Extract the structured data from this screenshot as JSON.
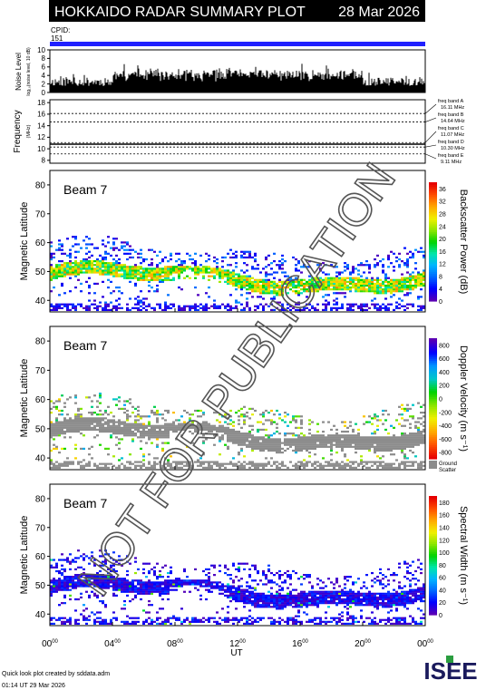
{
  "header": {
    "title": "HOKKAIDO RADAR SUMMARY PLOT",
    "date": "28 Mar 2026",
    "cpid_label": "CPID:",
    "cpid_value": "151"
  },
  "watermark": "NOT FOR PUBLICATION",
  "footer": {
    "created_by": "Quick look plot created by sddata.adm",
    "timestamp": "01:14 UT 29 Mar 2026",
    "logo": "ISEE"
  },
  "colors": {
    "title_bar": "#000000",
    "cpid_bar": "#2020ff",
    "ground_scatter": "#8c8c8c"
  },
  "chart_data": [
    {
      "type": "bar",
      "name": "noise",
      "ylabel": "Noise Level",
      "ylabel_sub": "log₁₀(noise level, 10 dB)",
      "ylim": [
        0,
        10
      ],
      "yticks": [
        "0",
        "2",
        "4",
        "6",
        "8",
        "10"
      ],
      "xlim": [
        0,
        24
      ],
      "typical_level": [
        1.5,
        3.5
      ]
    },
    {
      "type": "line",
      "name": "frequency",
      "ylabel": "Frequency",
      "ylabel_sub": "(MHz)",
      "ylim": [
        7.5,
        18.5
      ],
      "yticks": [
        "8",
        "10",
        "12",
        "14",
        "16",
        "18"
      ],
      "bands": [
        {
          "label": "freq band A",
          "value_label": "16.11 MHz",
          "value": 16.11
        },
        {
          "label": "freq band B",
          "value_label": "14.64 MHz",
          "value": 14.64
        },
        {
          "label": "freq band C",
          "value_label": "11.07 MHz",
          "value": 11.07
        },
        {
          "label": "freq band D",
          "value_label": "10.30 MHz",
          "value": 10.3
        },
        {
          "label": "freq band E",
          "value_label": "9.11 MHz",
          "value": 9.11
        }
      ],
      "operating_frequency": 10.8
    },
    {
      "type": "heatmap",
      "name": "power",
      "beam_label": "Beam 7",
      "ylabel": "Magnetic Latitude",
      "ylim": [
        36,
        85
      ],
      "yticks": [
        "40",
        "50",
        "60",
        "70",
        "80"
      ],
      "colorbar_label": "Backscatter Power (dB)",
      "colorbar_ticks": [
        "0",
        "4",
        "8",
        "12",
        "16",
        "20",
        "24",
        "28",
        "32",
        "36"
      ],
      "colorbar_range": [
        0,
        38
      ],
      "colorscale": [
        "#5a00b4",
        "#0000ff",
        "#0066ff",
        "#00b4ff",
        "#00e6aa",
        "#00d200",
        "#8ce600",
        "#f0f000",
        "#ffaa00",
        "#ff5000",
        "#e60000"
      ]
    },
    {
      "type": "heatmap",
      "name": "velocity",
      "beam_label": "Beam 7",
      "ylabel": "Magnetic Latitude",
      "ylim": [
        36,
        85
      ],
      "yticks": [
        "40",
        "50",
        "60",
        "70",
        "80"
      ],
      "colorbar_label": "Doppler Velocity (m s⁻¹)",
      "colorbar_ticks": [
        "-800",
        "-600",
        "-400",
        "-200",
        "0",
        "200",
        "400",
        "600",
        "800"
      ],
      "colorbar_range": [
        -900,
        900
      ],
      "colorscale": [
        "#e60000",
        "#ff5000",
        "#ffaa00",
        "#f0f000",
        "#8ce600",
        "#00d200",
        "#00c8c8",
        "#0096ff",
        "#0000ff",
        "#5a00b4"
      ],
      "ground_scatter_label": [
        "Ground",
        "Scatter"
      ]
    },
    {
      "type": "heatmap",
      "name": "width",
      "beam_label": "Beam 7",
      "ylabel": "Magnetic Latitude",
      "ylim": [
        36,
        85
      ],
      "yticks": [
        "40",
        "50",
        "60",
        "70",
        "80"
      ],
      "colorbar_label": "Spectral Width (m s⁻¹)",
      "colorbar_ticks": [
        "0",
        "20",
        "40",
        "60",
        "80",
        "100",
        "120",
        "140",
        "160",
        "180"
      ],
      "colorbar_range": [
        0,
        190
      ],
      "colorscale": [
        "#5a00b4",
        "#0000ff",
        "#0066ff",
        "#00b4ff",
        "#00e6aa",
        "#00d200",
        "#8ce600",
        "#f0f000",
        "#ffaa00",
        "#ff5000",
        "#e60000"
      ]
    }
  ],
  "x_axis": {
    "label": "UT",
    "ticks": [
      {
        "h": "00",
        "m": "00",
        "value": 0
      },
      {
        "h": "04",
        "m": "00",
        "value": 4
      },
      {
        "h": "08",
        "m": "00",
        "value": 8
      },
      {
        "h": "12",
        "m": "00",
        "value": 12
      },
      {
        "h": "16",
        "m": "00",
        "value": 16
      },
      {
        "h": "20",
        "m": "00",
        "value": 20
      },
      {
        "h": "00",
        "m": "00",
        "value": 24
      }
    ]
  }
}
